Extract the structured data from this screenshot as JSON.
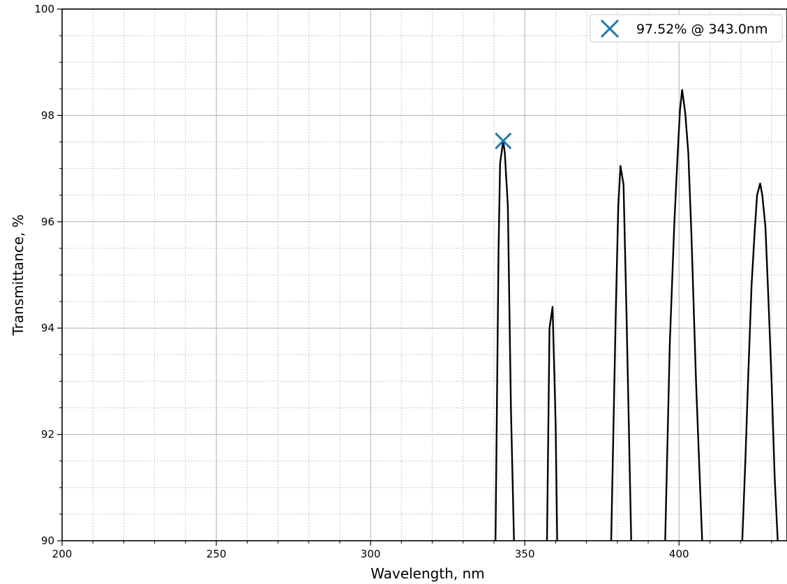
{
  "chart_data": {
    "type": "line",
    "title": "",
    "xlabel": "Wavelength, nm",
    "ylabel": "Transmittance, %",
    "xlim": [
      200,
      435
    ],
    "ylim": [
      90,
      100
    ],
    "x_ticks": [
      200,
      250,
      300,
      350,
      400
    ],
    "y_ticks": [
      90,
      92,
      94,
      96,
      98,
      100
    ],
    "x_minor_step": 10,
    "y_minor_step": 0.5,
    "grid": true,
    "grid_minor": true,
    "legend_position": "top-right",
    "series": [
      {
        "color": "#000000",
        "segments": [
          [
            [
              340.5,
              90
            ],
            [
              341.5,
              95.5
            ],
            [
              342,
              97.1
            ],
            [
              343,
              97.52
            ],
            [
              343.5,
              97.3
            ],
            [
              344.5,
              96.3
            ],
            [
              345.5,
              92.5
            ],
            [
              346.5,
              90
            ]
          ],
          [
            [
              357.2,
              90
            ],
            [
              358,
              94.0
            ],
            [
              359,
              94.4
            ],
            [
              360,
              92.2
            ],
            [
              360.5,
              90
            ]
          ],
          [
            [
              378,
              90
            ],
            [
              379.5,
              94.3
            ],
            [
              380.3,
              96.3
            ],
            [
              381,
              97.05
            ],
            [
              382,
              96.7
            ],
            [
              383,
              94.2
            ],
            [
              384.5,
              90
            ]
          ],
          [
            [
              395.5,
              90
            ],
            [
              397,
              93.7
            ],
            [
              398.5,
              96.0
            ],
            [
              399.5,
              97.2
            ],
            [
              400.3,
              98.1
            ],
            [
              401,
              98.48
            ],
            [
              402,
              98.05
            ],
            [
              403,
              97.3
            ],
            [
              404,
              95.8
            ],
            [
              405.5,
              93.0
            ],
            [
              407.5,
              90
            ]
          ],
          [
            [
              420.5,
              90
            ],
            [
              421.5,
              91.5
            ],
            [
              422.5,
              93.2
            ],
            [
              423.5,
              94.8
            ],
            [
              424.5,
              95.8
            ],
            [
              425.3,
              96.5
            ],
            [
              426.3,
              96.72
            ],
            [
              427,
              96.5
            ],
            [
              428,
              95.9
            ],
            [
              429,
              94.5
            ],
            [
              430,
              93.0
            ],
            [
              431,
              91.2
            ],
            [
              432,
              90
            ]
          ]
        ]
      }
    ],
    "marker": {
      "x": 343.0,
      "y": 97.52,
      "label": "97.52% @ 343.0nm",
      "color": "#1f77b4",
      "symbol": "x"
    }
  }
}
